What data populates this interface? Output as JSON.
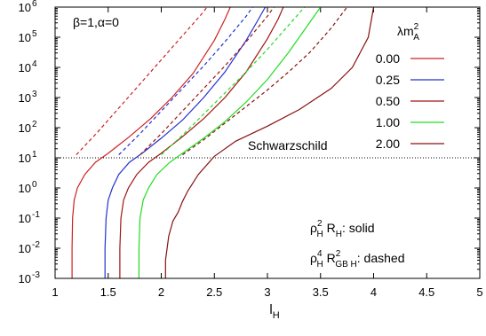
{
  "chart_data": {
    "type": "line",
    "xlabel": "l",
    "xlabel_sub": "H",
    "ylabel": "",
    "xlim": [
      1,
      5
    ],
    "ylim_log10": [
      -3,
      6
    ],
    "y_scale": "log",
    "grid": false,
    "x_ticks": [
      "1",
      "1.5",
      "2",
      "2.5",
      "3",
      "3.5",
      "4",
      "4.5",
      "5"
    ],
    "y_ticks": [
      {
        "base": "10",
        "exp": "-3"
      },
      {
        "base": "10",
        "exp": "-2"
      },
      {
        "base": "10",
        "exp": "-1"
      },
      {
        "base": "10",
        "exp": "0"
      },
      {
        "base": "10",
        "exp": "1"
      },
      {
        "base": "10",
        "exp": "2"
      },
      {
        "base": "10",
        "exp": "3"
      },
      {
        "base": "10",
        "exp": "4"
      },
      {
        "base": "10",
        "exp": "5"
      },
      {
        "base": "10",
        "exp": "6"
      }
    ],
    "annotation_params": "β=1,α=0",
    "legend_title": {
      "base": "λm",
      "sup": "2",
      "sub": "A"
    },
    "legend_position": "top-right",
    "schwarzschild_label": "Schwarzschild",
    "schwarzschild_log10y": 1.0,
    "note_solid": {
      "a": "ρ",
      "a_sup": "2",
      "a_sub": "H",
      "b": " R",
      "b_sub": "H",
      "c": ": solid"
    },
    "note_dashed": {
      "a": "ρ",
      "a_sup": "4",
      "a_sub": "H",
      "b": " R",
      "b_sup": "2",
      "b_sub": "GB H",
      "c": ": dashed"
    },
    "series": [
      {
        "name": "0.00",
        "color": "#cc2222",
        "solid": [
          [
            1.16,
            -3
          ],
          [
            1.16,
            -2
          ],
          [
            1.165,
            -1
          ],
          [
            1.18,
            -0.4
          ],
          [
            1.21,
            0
          ],
          [
            1.28,
            0.45
          ],
          [
            1.38,
            0.85
          ],
          [
            1.5,
            1.15
          ],
          [
            1.7,
            1.7
          ],
          [
            1.9,
            2.3
          ],
          [
            2.1,
            3.0
          ],
          [
            2.3,
            3.8
          ],
          [
            2.5,
            4.9
          ],
          [
            2.6,
            5.6
          ],
          [
            2.65,
            6.0
          ]
        ],
        "dashed": [
          [
            1.2,
            1.1
          ],
          [
            1.4,
            1.85
          ],
          [
            1.6,
            2.65
          ],
          [
            1.8,
            3.45
          ],
          [
            2.0,
            4.25
          ],
          [
            2.2,
            5.05
          ],
          [
            2.4,
            5.85
          ],
          [
            2.43,
            6.0
          ]
        ]
      },
      {
        "name": "0.25",
        "color": "#2233cc",
        "solid": [
          [
            1.47,
            -3
          ],
          [
            1.47,
            -2
          ],
          [
            1.48,
            -1
          ],
          [
            1.5,
            -0.4
          ],
          [
            1.54,
            0
          ],
          [
            1.6,
            0.45
          ],
          [
            1.7,
            0.85
          ],
          [
            1.82,
            1.15
          ],
          [
            2.0,
            1.65
          ],
          [
            2.2,
            2.25
          ],
          [
            2.4,
            3.0
          ],
          [
            2.6,
            3.85
          ],
          [
            2.8,
            4.9
          ],
          [
            2.9,
            5.5
          ],
          [
            2.98,
            6.0
          ]
        ],
        "dashed": [
          [
            1.6,
            1.1
          ],
          [
            1.8,
            1.8
          ],
          [
            2.0,
            2.55
          ],
          [
            2.2,
            3.3
          ],
          [
            2.4,
            4.05
          ],
          [
            2.6,
            4.85
          ],
          [
            2.8,
            5.7
          ],
          [
            2.86,
            6.0
          ]
        ]
      },
      {
        "name": "0.50",
        "color": "#a01515",
        "solid": [
          [
            1.61,
            -3
          ],
          [
            1.61,
            -2
          ],
          [
            1.62,
            -1
          ],
          [
            1.645,
            -0.4
          ],
          [
            1.69,
            0
          ],
          [
            1.77,
            0.45
          ],
          [
            1.88,
            0.85
          ],
          [
            2.0,
            1.15
          ],
          [
            2.2,
            1.7
          ],
          [
            2.4,
            2.3
          ],
          [
            2.6,
            3.0
          ],
          [
            2.8,
            3.85
          ],
          [
            3.0,
            4.95
          ],
          [
            3.1,
            5.6
          ],
          [
            3.15,
            6.0
          ]
        ],
        "dashed": [
          [
            1.8,
            1.1
          ],
          [
            2.0,
            1.8
          ],
          [
            2.2,
            2.55
          ],
          [
            2.4,
            3.3
          ],
          [
            2.6,
            4.05
          ],
          [
            2.8,
            4.85
          ],
          [
            3.0,
            5.7
          ],
          [
            3.06,
            6.0
          ]
        ]
      },
      {
        "name": "1.00",
        "color": "#22dd22",
        "solid": [
          [
            1.79,
            -3
          ],
          [
            1.79,
            -2
          ],
          [
            1.8,
            -1
          ],
          [
            1.83,
            -0.4
          ],
          [
            1.88,
            0
          ],
          [
            1.96,
            0.45
          ],
          [
            2.08,
            0.85
          ],
          [
            2.2,
            1.15
          ],
          [
            2.4,
            1.65
          ],
          [
            2.6,
            2.2
          ],
          [
            2.8,
            2.85
          ],
          [
            3.0,
            3.6
          ],
          [
            3.2,
            4.5
          ],
          [
            3.4,
            5.5
          ],
          [
            3.5,
            6.0
          ]
        ],
        "dashed": [
          [
            2.0,
            1.1
          ],
          [
            2.2,
            1.75
          ],
          [
            2.4,
            2.45
          ],
          [
            2.6,
            3.15
          ],
          [
            2.8,
            3.85
          ],
          [
            3.0,
            4.6
          ],
          [
            3.2,
            5.4
          ],
          [
            3.35,
            6.0
          ]
        ]
      },
      {
        "name": "2.00",
        "color": "#881111",
        "solid": [
          [
            2.04,
            -3
          ],
          [
            2.04,
            -2.4
          ],
          [
            2.07,
            -1.6
          ],
          [
            2.11,
            -1.1
          ],
          [
            2.16,
            -0.8
          ],
          [
            2.2,
            -0.45
          ],
          [
            2.25,
            -0.1
          ],
          [
            2.35,
            0.45
          ],
          [
            2.5,
            1.05
          ],
          [
            2.7,
            1.55
          ],
          [
            3.0,
            2.05
          ],
          [
            3.3,
            2.6
          ],
          [
            3.6,
            3.3
          ],
          [
            3.8,
            4.0
          ],
          [
            3.95,
            5.0
          ],
          [
            4.0,
            6.0
          ]
        ],
        "dashed": [
          [
            2.2,
            1.1
          ],
          [
            2.4,
            1.6
          ],
          [
            2.6,
            2.15
          ],
          [
            2.8,
            2.7
          ],
          [
            3.0,
            3.25
          ],
          [
            3.2,
            3.85
          ],
          [
            3.4,
            4.5
          ],
          [
            3.6,
            5.3
          ],
          [
            3.75,
            6.0
          ]
        ]
      }
    ]
  }
}
